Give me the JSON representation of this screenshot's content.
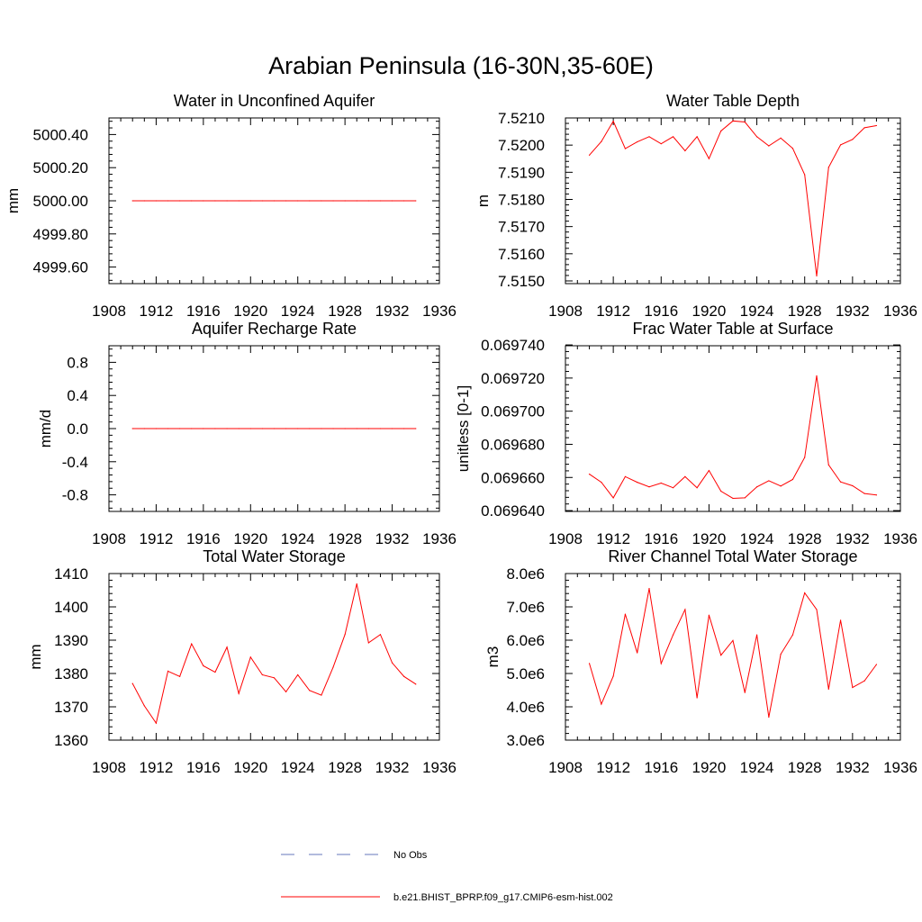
{
  "figure": {
    "title": "Arabian Peninsula (16-30N,35-60E)"
  },
  "legend": {
    "items": [
      {
        "label": "No Obs",
        "color": "#6677bb",
        "dash": true
      },
      {
        "label": "b.e21.BHIST_BPRP.f09_g17.CMIP6-esm-hist.002",
        "color": "#ff0000",
        "dash": false
      }
    ]
  },
  "chart_data": [
    {
      "type": "line",
      "title": "Water in Unconfined Aquifer",
      "xlabel": "",
      "ylabel": "mm",
      "xlim": [
        1908,
        1936
      ],
      "ylim": [
        4999.5,
        5000.5
      ],
      "xticks": [
        1908,
        1912,
        1916,
        1920,
        1924,
        1928,
        1932,
        1936
      ],
      "xtick_labels": [
        "1908",
        "1912",
        "1916",
        "1920",
        "1924",
        "1928",
        "1932",
        "1936"
      ],
      "yticks": [
        4999.6,
        4999.8,
        5000.0,
        5000.2,
        5000.4
      ],
      "ytick_labels": [
        "4999.60",
        "4999.80",
        "5000.00",
        "5000.20",
        "5000.40"
      ],
      "series": [
        {
          "color": "#ff0000",
          "x": [
            1910,
            1911,
            1912,
            1913,
            1914,
            1915,
            1916,
            1917,
            1918,
            1919,
            1920,
            1921,
            1922,
            1923,
            1924,
            1925,
            1926,
            1927,
            1928,
            1929,
            1930,
            1931,
            1932,
            1933,
            1934
          ],
          "y": [
            5000,
            5000,
            5000,
            5000,
            5000,
            5000,
            5000,
            5000,
            5000,
            5000,
            5000,
            5000,
            5000,
            5000,
            5000,
            5000,
            5000,
            5000,
            5000,
            5000,
            5000,
            5000,
            5000,
            5000,
            5000
          ]
        }
      ]
    },
    {
      "type": "line",
      "title": "Water Table Depth",
      "xlabel": "",
      "ylabel": "m",
      "xlim": [
        1908,
        1936
      ],
      "ylim": [
        7.5149,
        7.521
      ],
      "xticks": [
        1908,
        1912,
        1916,
        1920,
        1924,
        1928,
        1932,
        1936
      ],
      "xtick_labels": [
        "1908",
        "1912",
        "1916",
        "1920",
        "1924",
        "1928",
        "1932",
        "1936"
      ],
      "yticks": [
        7.515,
        7.516,
        7.517,
        7.518,
        7.519,
        7.52,
        7.521
      ],
      "ytick_labels": [
        "7.5150",
        "7.5160",
        "7.5170",
        "7.5180",
        "7.5190",
        "7.5200",
        "7.5210"
      ],
      "series": [
        {
          "color": "#ff0000",
          "x": [
            1910,
            1911,
            1912,
            1913,
            1914,
            1915,
            1916,
            1917,
            1918,
            1919,
            1920,
            1921,
            1922,
            1923,
            1924,
            1925,
            1926,
            1927,
            1928,
            1929,
            1930,
            1931,
            1932,
            1933,
            1934
          ],
          "y": [
            7.51963,
            7.52013,
            7.52088,
            7.51987,
            7.52012,
            7.52031,
            7.52005,
            7.52031,
            7.51979,
            7.52031,
            7.5195,
            7.52052,
            7.52089,
            7.52085,
            7.52031,
            7.51997,
            7.52026,
            7.51988,
            7.51891,
            7.51518,
            7.51918,
            7.52001,
            7.52021,
            7.52064,
            7.52072
          ]
        }
      ]
    },
    {
      "type": "line",
      "title": "Aquifer Recharge Rate",
      "xlabel": "",
      "ylabel": "mm/d",
      "xlim": [
        1908,
        1936
      ],
      "ylim": [
        -1.0,
        1.0
      ],
      "xticks": [
        1908,
        1912,
        1916,
        1920,
        1924,
        1928,
        1932,
        1936
      ],
      "xtick_labels": [
        "1908",
        "1912",
        "1916",
        "1920",
        "1924",
        "1928",
        "1932",
        "1936"
      ],
      "yticks": [
        -0.8,
        -0.4,
        0.0,
        0.4,
        0.8
      ],
      "ytick_labels": [
        "-0.8",
        "-0.4",
        "0.0",
        "0.4",
        "0.8"
      ],
      "series": [
        {
          "color": "#ff0000",
          "x": [
            1910,
            1911,
            1912,
            1913,
            1914,
            1915,
            1916,
            1917,
            1918,
            1919,
            1920,
            1921,
            1922,
            1923,
            1924,
            1925,
            1926,
            1927,
            1928,
            1929,
            1930,
            1931,
            1932,
            1933,
            1934
          ],
          "y": [
            0,
            0,
            0,
            0,
            0,
            0,
            0,
            0,
            0,
            0,
            0,
            0,
            0,
            0,
            0,
            0,
            0,
            0,
            0,
            0,
            0,
            0,
            0,
            0,
            0
          ]
        }
      ]
    },
    {
      "type": "line",
      "title": "Frac Water Table at Surface",
      "xlabel": "",
      "ylabel": "unitless [0-1]",
      "xlim": [
        1908,
        1936
      ],
      "ylim": [
        0.0696395,
        0.0697395
      ],
      "xticks": [
        1908,
        1912,
        1916,
        1920,
        1924,
        1928,
        1932,
        1936
      ],
      "xtick_labels": [
        "1908",
        "1912",
        "1916",
        "1920",
        "1924",
        "1928",
        "1932",
        "1936"
      ],
      "yticks": [
        0.06964,
        0.06966,
        0.06968,
        0.0697,
        0.06972,
        0.06974
      ],
      "ytick_labels": [
        "0.069640",
        "0.069660",
        "0.069680",
        "0.069700",
        "0.069720",
        "0.069740"
      ],
      "series": [
        {
          "color": "#ff0000",
          "x": [
            1910,
            1911,
            1912,
            1913,
            1914,
            1915,
            1916,
            1917,
            1918,
            1919,
            1920,
            1921,
            1922,
            1923,
            1924,
            1925,
            1926,
            1927,
            1928,
            1929,
            1930,
            1931,
            1932,
            1933,
            1934
          ],
          "y": [
            0.069662,
            0.0696571,
            0.0696477,
            0.0696605,
            0.0696571,
            0.0696543,
            0.0696566,
            0.0696538,
            0.0696605,
            0.0696538,
            0.0696642,
            0.0696517,
            0.0696474,
            0.0696477,
            0.0696543,
            0.069658,
            0.0696548,
            0.0696588,
            0.0696721,
            0.0697214,
            0.0696676,
            0.0696573,
            0.069655,
            0.0696503,
            0.0696494
          ]
        }
      ]
    },
    {
      "type": "line",
      "title": "Total Water Storage",
      "xlabel": "",
      "ylabel": "mm",
      "xlim": [
        1908,
        1936
      ],
      "ylim": [
        1360,
        1410
      ],
      "xticks": [
        1908,
        1912,
        1916,
        1920,
        1924,
        1928,
        1932,
        1936
      ],
      "xtick_labels": [
        "1908",
        "1912",
        "1916",
        "1920",
        "1924",
        "1928",
        "1932",
        "1936"
      ],
      "yticks": [
        1360,
        1370,
        1380,
        1390,
        1400,
        1410
      ],
      "ytick_labels": [
        "1360",
        "1370",
        "1380",
        "1390",
        "1400",
        "1410"
      ],
      "series": [
        {
          "color": "#ff0000",
          "x": [
            1910,
            1911,
            1912,
            1913,
            1914,
            1915,
            1916,
            1917,
            1918,
            1919,
            1920,
            1921,
            1922,
            1923,
            1924,
            1925,
            1926,
            1927,
            1928,
            1929,
            1930,
            1931,
            1932,
            1933,
            1934
          ],
          "y": [
            1377.0,
            1370.3,
            1365.1,
            1380.7,
            1379.1,
            1388.9,
            1382.3,
            1380.4,
            1387.9,
            1374.0,
            1384.9,
            1379.6,
            1378.7,
            1374.5,
            1379.6,
            1374.9,
            1373.5,
            1381.9,
            1391.7,
            1406.9,
            1389.2,
            1391.7,
            1383.2,
            1379.1,
            1376.8
          ]
        }
      ]
    },
    {
      "type": "line",
      "title": "River Channel Total Water Storage",
      "xlabel": "",
      "ylabel": "m3",
      "xlim": [
        1908,
        1936
      ],
      "ylim": [
        3000000,
        8000000
      ],
      "xticks": [
        1908,
        1912,
        1916,
        1920,
        1924,
        1928,
        1932,
        1936
      ],
      "xtick_labels": [
        "1908",
        "1912",
        "1916",
        "1920",
        "1924",
        "1928",
        "1932",
        "1936"
      ],
      "yticks": [
        3000000,
        4000000,
        5000000,
        6000000,
        7000000,
        8000000
      ],
      "ytick_labels": [
        "3.0e6",
        "4.0e6",
        "5.0e6",
        "6.0e6",
        "7.0e6",
        "8.0e6"
      ],
      "series": [
        {
          "color": "#ff0000",
          "x": [
            1910,
            1911,
            1912,
            1913,
            1914,
            1915,
            1916,
            1917,
            1918,
            1919,
            1920,
            1921,
            1922,
            1923,
            1924,
            1925,
            1926,
            1927,
            1928,
            1929,
            1930,
            1931,
            1932,
            1933,
            1934
          ],
          "y": [
            5300000,
            4080000,
            4920000,
            6780000,
            5620000,
            7550000,
            5300000,
            6160000,
            6920000,
            4270000,
            6750000,
            5550000,
            5990000,
            4430000,
            6160000,
            3690000,
            5580000,
            6160000,
            7420000,
            6920000,
            4530000,
            6600000,
            4580000,
            4780000,
            5270000
          ]
        }
      ]
    }
  ]
}
